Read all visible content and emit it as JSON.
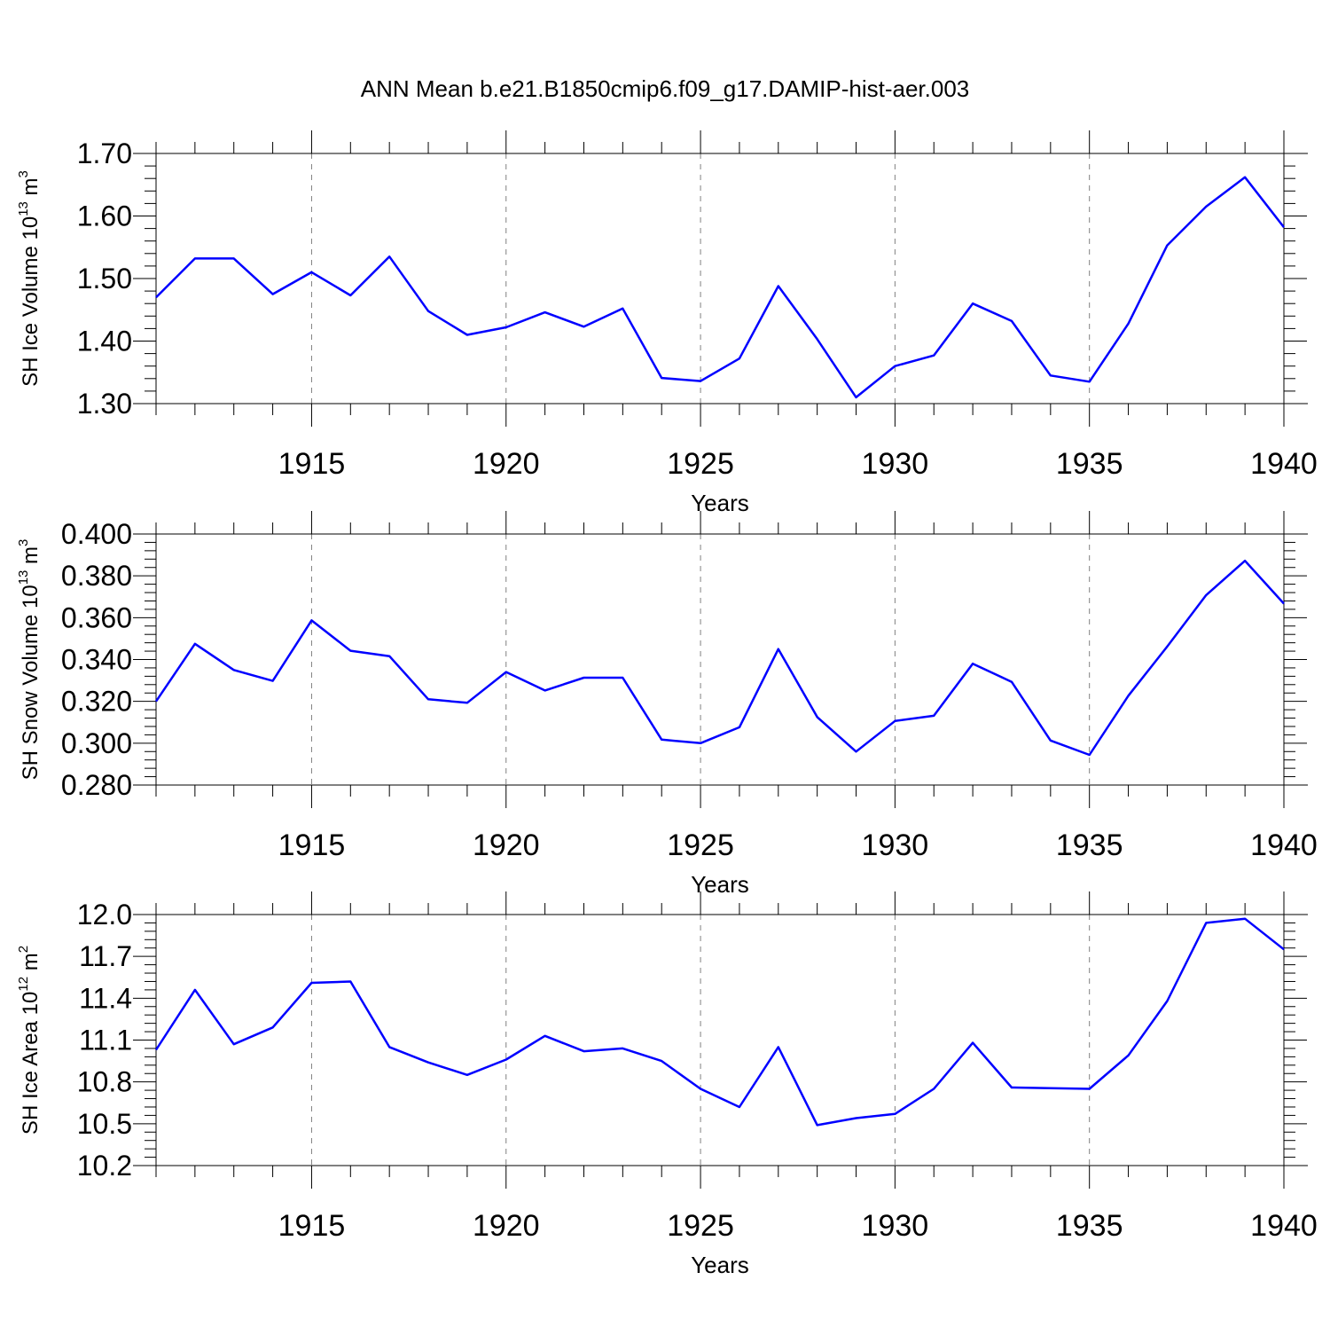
{
  "title": "ANN Mean b.e21.B1850cmip6.f09_g17.DAMIP-hist-aer.003",
  "colors": {
    "line": "#0000ff",
    "axis": "#000000",
    "grid": "#808080",
    "background": "#ffffff"
  },
  "chart_data": [
    {
      "type": "line",
      "xlabel": "Years",
      "ylabel": {
        "main": "SH Ice Volume 10",
        "exp": "13",
        "unit": " m",
        "unit_exp": "3"
      },
      "xlim": [
        1911,
        1940
      ],
      "ylim": [
        1.3,
        1.7
      ],
      "xticks": [
        1915,
        1920,
        1925,
        1930,
        1935,
        1940
      ],
      "yticks": [
        "1.30",
        "1.40",
        "1.50",
        "1.60",
        "1.70"
      ],
      "grid": "vertical dashed at major x ticks",
      "series": [
        {
          "x": [
            1911,
            1912,
            1913,
            1914,
            1915,
            1916,
            1917,
            1918,
            1919,
            1920,
            1921,
            1922,
            1923,
            1924,
            1925,
            1926,
            1927,
            1928,
            1929,
            1930,
            1931,
            1932,
            1933,
            1934,
            1935,
            1936,
            1937,
            1938,
            1939,
            1940
          ],
          "values": [
            1.47,
            1.532,
            1.532,
            1.475,
            1.51,
            1.473,
            1.535,
            1.448,
            1.41,
            1.422,
            1.446,
            1.423,
            1.452,
            1.341,
            1.336,
            1.372,
            1.488,
            1.403,
            1.31,
            1.36,
            1.377,
            1.46,
            1.432,
            1.345,
            1.335,
            1.428,
            1.553,
            1.615,
            1.662,
            1.582
          ]
        }
      ]
    },
    {
      "type": "line",
      "xlabel": "Years",
      "ylabel": {
        "main": "SH Snow Volume 10",
        "exp": "13",
        "unit": " m",
        "unit_exp": "3"
      },
      "xlim": [
        1911,
        1940
      ],
      "ylim": [
        0.28,
        0.4
      ],
      "xticks": [
        1915,
        1920,
        1925,
        1930,
        1935,
        1940
      ],
      "yticks": [
        "0.280",
        "0.300",
        "0.320",
        "0.340",
        "0.360",
        "0.380",
        "0.400"
      ],
      "grid": "vertical dashed at major x ticks",
      "series": [
        {
          "x": [
            1911,
            1912,
            1913,
            1914,
            1915,
            1916,
            1917,
            1918,
            1919,
            1920,
            1921,
            1922,
            1923,
            1924,
            1925,
            1926,
            1927,
            1928,
            1929,
            1930,
            1931,
            1932,
            1933,
            1934,
            1935,
            1936,
            1937,
            1938,
            1939,
            1940
          ],
          "values": [
            0.32,
            0.3475,
            0.335,
            0.3298,
            0.3587,
            0.3442,
            0.3416,
            0.321,
            0.3193,
            0.334,
            0.3252,
            0.3313,
            0.3313,
            0.3017,
            0.3,
            0.3076,
            0.345,
            0.3125,
            0.296,
            0.3106,
            0.3131,
            0.338,
            0.3293,
            0.3013,
            0.2944,
            0.3227,
            0.3462,
            0.3708,
            0.3872,
            0.3667
          ]
        }
      ]
    },
    {
      "type": "line",
      "xlabel": "Years",
      "ylabel": {
        "main": "SH Ice Area 10",
        "exp": "12",
        "unit": " m",
        "unit_exp": "2"
      },
      "xlim": [
        1911,
        1940
      ],
      "ylim": [
        10.2,
        12.0
      ],
      "xticks": [
        1915,
        1920,
        1925,
        1930,
        1935,
        1940
      ],
      "yticks": [
        "10.2",
        "10.5",
        "10.8",
        "11.1",
        "11.4",
        "11.7",
        "12.0"
      ],
      "grid": "vertical dashed at major x ticks",
      "series": [
        {
          "x": [
            1911,
            1912,
            1913,
            1914,
            1915,
            1916,
            1917,
            1918,
            1919,
            1920,
            1921,
            1922,
            1923,
            1924,
            1925,
            1926,
            1927,
            1928,
            1929,
            1930,
            1931,
            1932,
            1933,
            1934,
            1935,
            1936,
            1937,
            1938,
            1939,
            1940
          ],
          "values": [
            11.03,
            11.46,
            11.07,
            11.19,
            11.51,
            11.52,
            11.05,
            10.94,
            10.85,
            10.96,
            11.13,
            11.02,
            11.04,
            10.95,
            10.75,
            10.62,
            11.05,
            10.49,
            10.54,
            10.57,
            10.75,
            11.08,
            10.76,
            10.755,
            10.75,
            10.99,
            11.38,
            11.94,
            11.97,
            11.75
          ]
        }
      ]
    }
  ]
}
